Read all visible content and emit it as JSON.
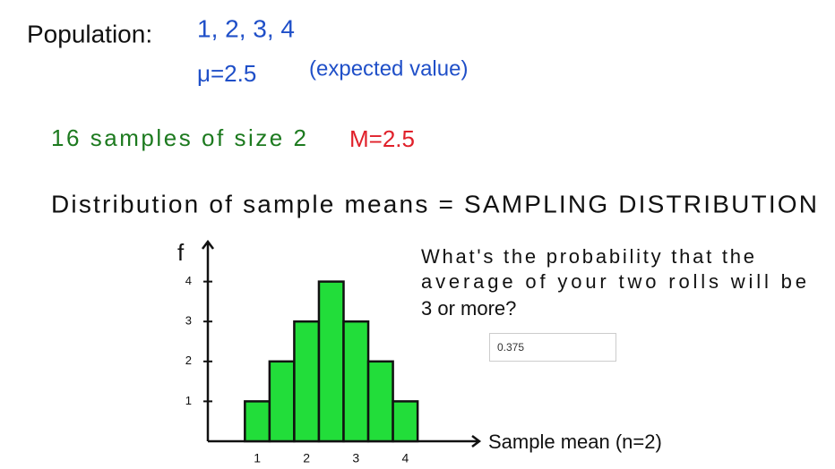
{
  "notes": {
    "population_label": "Population:",
    "population": "1, 2, 3, 4",
    "mu": "μ=2.5",
    "mu_note": "(expected value)",
    "samples": "16 samples of size 2",
    "sample_mean": "M=2.5",
    "heading": "Distribution of sample means = SAMPLING DISTRIBUTION"
  },
  "question": {
    "lines": [
      "What's the probability that the",
      "average of your two rolls will be",
      "3 or more?"
    ],
    "answer": "0.375"
  },
  "chart_data": {
    "type": "histogram",
    "y_label": "f",
    "x_label": "Sample mean (n=2)",
    "bins": [
      0.75,
      1.25,
      1.75,
      2.25,
      2.75,
      3.25,
      3.75,
      4.25
    ],
    "counts": [
      1,
      2,
      3,
      4,
      3,
      2,
      1
    ],
    "color": "#22dd3a",
    "xlim": [
      0,
      5.5
    ],
    "ylim": [
      0,
      5
    ],
    "xticks": [
      1,
      2,
      3,
      4
    ],
    "yticks": [
      1,
      2,
      3,
      4
    ]
  }
}
